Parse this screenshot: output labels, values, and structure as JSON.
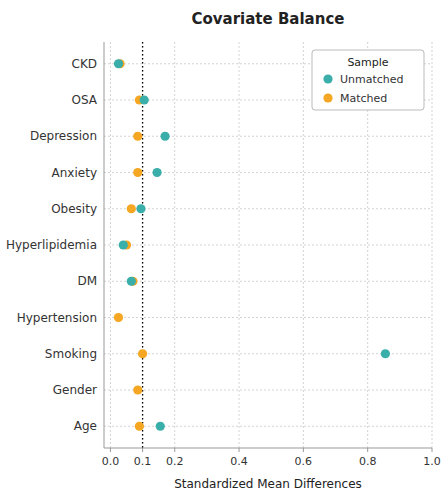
{
  "chart_data": {
    "type": "dot",
    "title": "Covariate Balance",
    "x_label": "Standardized Mean Differences",
    "orientation": "horizontal",
    "categories": [
      "Age",
      "Gender",
      "Smoking",
      "Hypertension",
      "DM",
      "Hyperlipidemia",
      "Obesity",
      "Anxiety",
      "Depression",
      "OSA",
      "CKD"
    ],
    "series": [
      {
        "name": "Unmatched",
        "color": "#3aafa9",
        "values": [
          0.155,
          null,
          0.855,
          null,
          0.065,
          0.04,
          0.095,
          0.145,
          0.17,
          0.105,
          0.025
        ]
      },
      {
        "name": "Matched",
        "color": "#f5a623",
        "values": [
          0.09,
          0.085,
          0.1,
          0.025,
          0.07,
          0.05,
          0.065,
          0.085,
          0.085,
          0.09,
          0.03
        ]
      }
    ],
    "xlim": [
      -0.02,
      1.0
    ],
    "xticks": [
      {
        "value": 0.0,
        "label": "0.0"
      },
      0.1,
      0.2,
      0.4,
      0.6,
      0.8,
      {
        "value": 1.0,
        "label": "1.0"
      }
    ],
    "vline": 0.1,
    "grid": true,
    "legend": "upper right",
    "legend_title": "Sample"
  }
}
